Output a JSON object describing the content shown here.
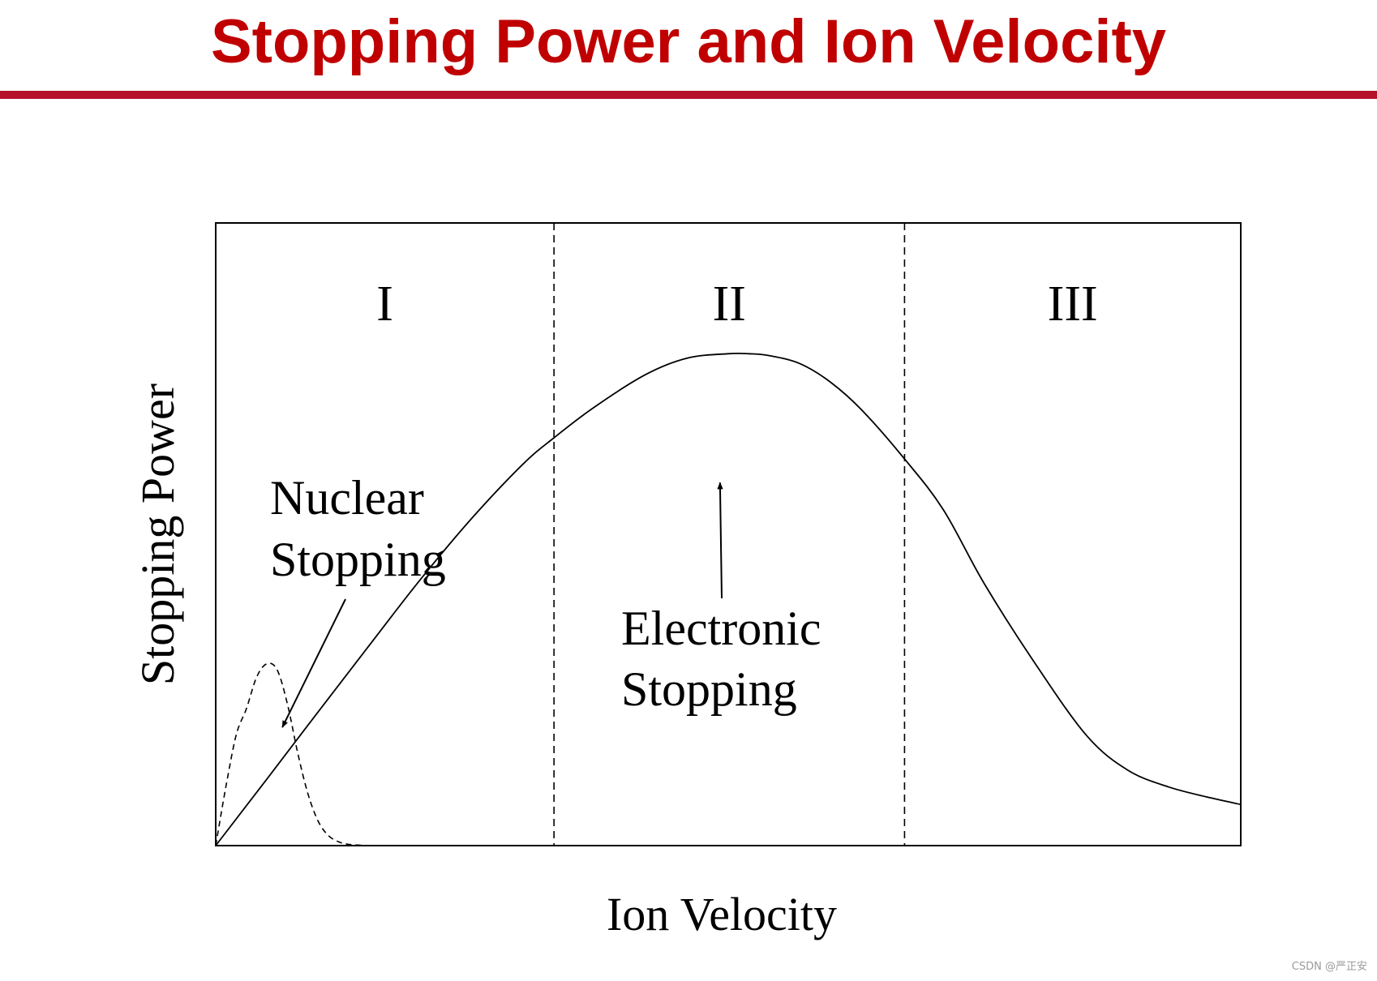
{
  "title": "Stopping Power and Ion Velocity",
  "watermark": "CSDN @严正安",
  "colors": {
    "title": "#c00000",
    "rule": "#b5122a",
    "line": "#000000"
  },
  "chart_data": {
    "type": "line",
    "title": "Stopping Power and Ion Velocity",
    "xlabel": "Ion Velocity",
    "ylabel": "Stopping Power",
    "xlim": [
      0,
      100
    ],
    "ylim": [
      0,
      100
    ],
    "grid": false,
    "legend": "none",
    "regions": [
      {
        "label": "I",
        "from": 0,
        "to": 33
      },
      {
        "label": "II",
        "from": 33,
        "to": 67.2
      },
      {
        "label": "III",
        "from": 67.2,
        "to": 100
      }
    ],
    "boundaries": [
      33,
      67.2
    ],
    "series": [
      {
        "name": "Electronic Stopping",
        "style": "solid",
        "x": [
          0,
          5,
          10,
          15,
          20,
          25,
          30,
          33,
          37,
          42,
          46,
          50,
          52,
          54,
          57,
          60,
          63,
          67.2,
          71,
          75,
          80,
          85,
          89,
          93,
          97,
          100
        ],
        "y": [
          0,
          10.7,
          21.5,
          32.2,
          42.8,
          52.6,
          61.3,
          65.5,
          70.5,
          75.7,
          78.3,
          79.0,
          79.0,
          78.7,
          77.4,
          74.4,
          70.0,
          62.1,
          53.9,
          42.0,
          29.1,
          17.6,
          12.1,
          9.4,
          7.7,
          6.6
        ]
      },
      {
        "name": "Nuclear Stopping",
        "style": "dashed",
        "x": [
          0,
          1,
          2,
          3,
          4,
          5,
          6,
          7,
          8,
          9,
          10,
          11,
          12,
          13,
          15,
          17
        ],
        "y": [
          0,
          9.5,
          17.8,
          22.0,
          27.1,
          29.2,
          28.2,
          22.7,
          14.9,
          8.3,
          3.9,
          1.6,
          0.6,
          0.2,
          0.0,
          0.0
        ]
      }
    ],
    "annotations": [
      {
        "label": "Nuclear Stopping",
        "lines": [
          "Nuclear",
          "Stopping"
        ],
        "target": {
          "x": 6.5,
          "y": 19.0
        }
      },
      {
        "label": "Electronic Stopping",
        "lines": [
          "Electronic",
          "Stopping"
        ],
        "target": {
          "x": 49.2,
          "y": 58.3
        }
      }
    ]
  }
}
